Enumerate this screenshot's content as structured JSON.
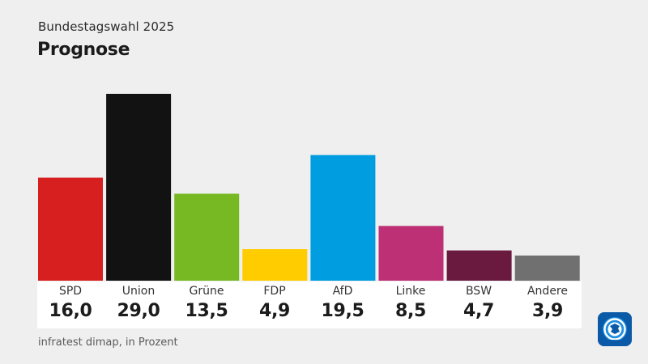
{
  "header": {
    "supertitle": "Bundestagswahl 2025",
    "title": "Prognose"
  },
  "footer": {
    "source": "infratest dimap, in Prozent"
  },
  "logo": {
    "icon": "ard-tagesschau-logo-icon"
  },
  "chart_data": {
    "type": "bar",
    "categories": [
      "SPD",
      "Union",
      "Grüne",
      "FDP",
      "AfD",
      "Linke",
      "BSW",
      "Andere"
    ],
    "values": [
      16.0,
      29.0,
      13.5,
      4.9,
      19.5,
      8.5,
      4.7,
      3.9
    ],
    "value_labels": [
      "16,0",
      "29,0",
      "13,5",
      "4,9",
      "19,5",
      "8,5",
      "4,7",
      "3,9"
    ],
    "colors": [
      "#d81f20",
      "#121212",
      "#76b922",
      "#ffcc00",
      "#009ee0",
      "#be3075",
      "#6b1a3f",
      "#707070"
    ],
    "ylim": [
      0,
      29
    ],
    "grid": false,
    "legend": "none"
  }
}
